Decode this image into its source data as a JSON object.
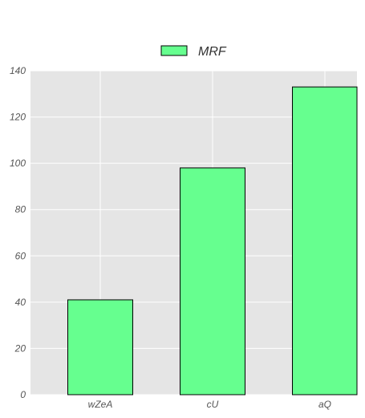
{
  "chart_data": {
    "type": "bar",
    "categories": [
      "wZeA",
      "cU",
      "aQ"
    ],
    "series": [
      {
        "name": "MRF",
        "values": [
          41,
          98,
          133
        ],
        "color": "#66ff8f"
      }
    ],
    "ylim": [
      0,
      140
    ],
    "yticks": [
      0,
      20,
      40,
      60,
      80,
      100,
      120,
      140
    ],
    "grid": true,
    "legend": "top-center",
    "plot_background": "#e5e5e5",
    "grid_color": "#ffffff",
    "bar_edge_color": "#000000"
  }
}
